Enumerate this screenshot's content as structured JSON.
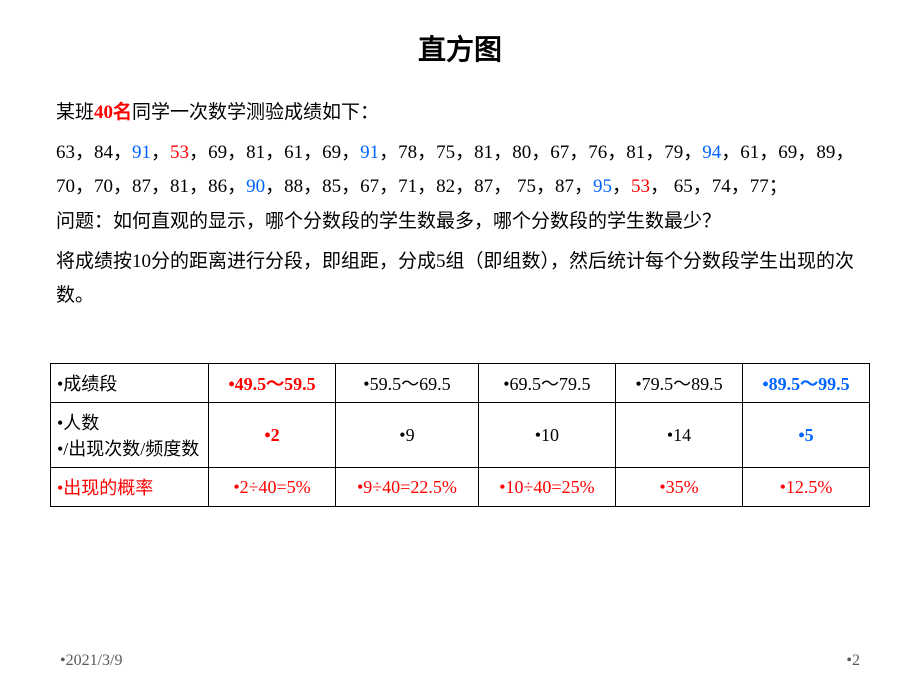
{
  "title": "直方图",
  "intro": {
    "prefix": "某班",
    "count": "40名",
    "suffix": "同学一次数学测验成绩如下："
  },
  "scores": [
    {
      "v": "63"
    },
    {
      "v": "84"
    },
    {
      "v": "91",
      "c": "blue"
    },
    {
      "v": "53",
      "c": "red"
    },
    {
      "v": "69"
    },
    {
      "v": "81"
    },
    {
      "v": "61"
    },
    {
      "v": "69"
    },
    {
      "v": "91",
      "c": "blue"
    },
    {
      "v": "78"
    },
    {
      "v": "75"
    },
    {
      "v": "81"
    },
    {
      "v": "80"
    },
    {
      "v": "67"
    },
    {
      "v": "76"
    },
    {
      "v": "81"
    },
    {
      "v": "79"
    },
    {
      "v": "94",
      "c": "blue"
    },
    {
      "v": "61"
    },
    {
      "v": "69"
    },
    {
      "v": "89"
    },
    {
      "v": "70"
    },
    {
      "v": "70"
    },
    {
      "v": "87"
    },
    {
      "v": "81"
    },
    {
      "v": "86"
    },
    {
      "v": "90",
      "c": "blue"
    },
    {
      "v": "88"
    },
    {
      "v": "85"
    },
    {
      "v": "67"
    },
    {
      "v": "71"
    },
    {
      "v": "82"
    },
    {
      "v": "87"
    },
    {
      "v": " 75"
    },
    {
      "v": "87"
    },
    {
      "v": "95",
      "c": "blue"
    },
    {
      "v": "53",
      "c": "red"
    },
    {
      "v": " 65"
    },
    {
      "v": "74"
    },
    {
      "v": "77"
    }
  ],
  "question": "问题：如何直观的显示，哪个分数段的学生数最多，哪个分数段的学生数最少？",
  "explain": "将成绩按10分的距离进行分段，即组距，分成5组（即组数），然后统计每个分数段学生出现的次数。",
  "table": {
    "row1_label": "•成绩段",
    "row1": [
      {
        "t": "•49.5～59.5",
        "c": "red",
        "b": true
      },
      {
        "t": "•59.5～69.5"
      },
      {
        "t": "•69.5～79.5"
      },
      {
        "t": "•79.5～89.5"
      },
      {
        "t": "•89.5～99.5",
        "c": "blue",
        "b": true
      }
    ],
    "row2_label_l1": "•人数",
    "row2_label_l2": "•/出现次数/频度数",
    "row2": [
      {
        "t": "•2",
        "c": "red",
        "b": true
      },
      {
        "t": "•9"
      },
      {
        "t": "•10"
      },
      {
        "t": "•14"
      },
      {
        "t": "•5",
        "c": "blue",
        "b": true
      }
    ],
    "row3_label": "•出现的概率",
    "row3": [
      {
        "t": "•2÷40=5%"
      },
      {
        "t": "•9÷40=22.5%"
      },
      {
        "t": "•10÷40=25%"
      },
      {
        "t": "•35%"
      },
      {
        "t": "•12.5%"
      }
    ]
  },
  "footer": {
    "date": "•2021/3/9",
    "page": "•2"
  },
  "colors": {
    "red": "#ff0000",
    "blue": "#0066ff",
    "text": "#000000",
    "footer": "#595959",
    "border": "#000000"
  }
}
